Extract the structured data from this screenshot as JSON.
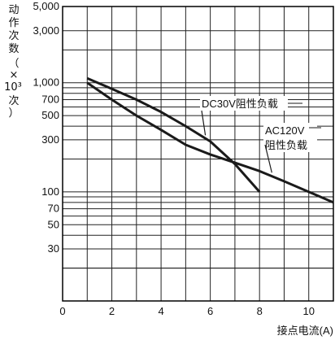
{
  "chart_data": {
    "type": "line",
    "title": "",
    "ylabel_lines": [
      "动",
      "作",
      "次",
      "数",
      "（",
      "×",
      "10³",
      "次",
      "）"
    ],
    "xlabel": "接点电流(A)",
    "xlim": [
      0,
      11
    ],
    "ylim": [
      10,
      5000
    ],
    "y_scale": "log",
    "grid": true,
    "x_ticks": [
      {
        "value": 0,
        "label": "0"
      },
      {
        "value": 2,
        "label": "2"
      },
      {
        "value": 4,
        "label": "4"
      },
      {
        "value": 6,
        "label": "6"
      },
      {
        "value": 8,
        "label": "8"
      },
      {
        "value": 10,
        "label": "10"
      }
    ],
    "y_ticks": [
      {
        "value": 5000,
        "label": "5,000"
      },
      {
        "value": 3000,
        "label": "3,000"
      },
      {
        "value": 1000,
        "label": "1,000"
      },
      {
        "value": 700,
        "label": "700"
      },
      {
        "value": 500,
        "label": "500"
      },
      {
        "value": 300,
        "label": "300"
      },
      {
        "value": 100,
        "label": "100"
      },
      {
        "value": 70,
        "label": "70"
      },
      {
        "value": 50,
        "label": "50"
      },
      {
        "value": 30,
        "label": "30"
      }
    ],
    "series": [
      {
        "name": "DC30V阻性负载",
        "x": [
          1,
          2,
          3,
          4,
          5,
          6,
          7,
          8
        ],
        "y": [
          1100,
          880,
          700,
          540,
          400,
          290,
          180,
          100
        ]
      },
      {
        "name": "AC120V 阻性负载",
        "x": [
          1,
          2,
          3,
          4,
          5,
          6,
          7,
          8,
          9,
          10,
          11
        ],
        "y": [
          1000,
          700,
          500,
          370,
          270,
          220,
          185,
          155,
          125,
          100,
          80
        ]
      }
    ],
    "annotations": [
      {
        "series": 0,
        "lines": [
          "DC30V阻性负载"
        ]
      },
      {
        "series": 1,
        "lines": [
          "AC120V",
          "阻性负载"
        ]
      }
    ]
  },
  "colors": {
    "line": "#1a1a1a",
    "grid": "#222222",
    "background": "#ffffff"
  }
}
